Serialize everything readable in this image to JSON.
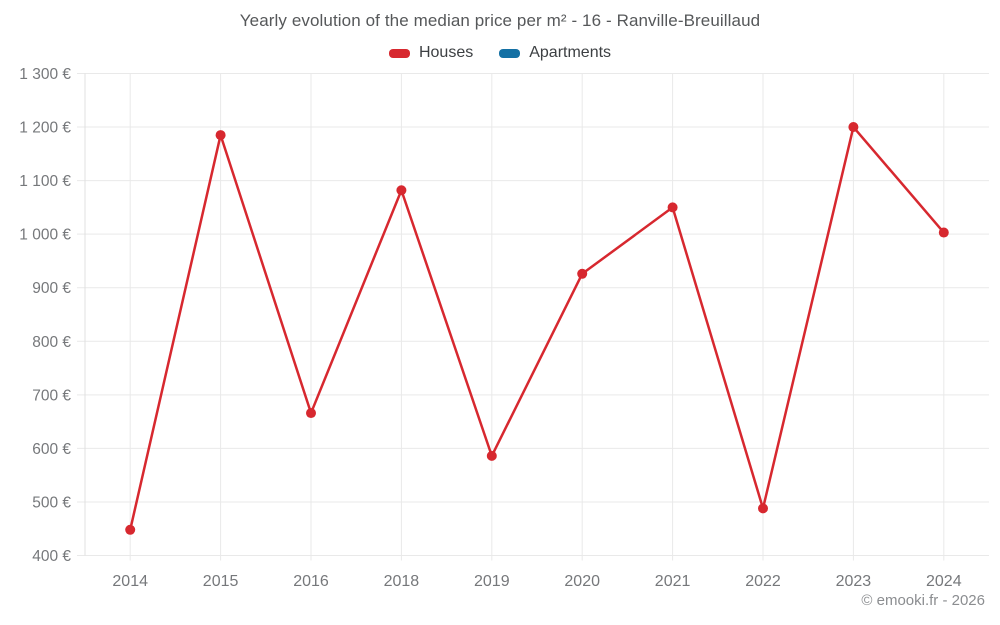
{
  "title": "Yearly evolution of the median price per m² - 16 - Ranville-Breuillaud",
  "legend": {
    "houses_label": "Houses",
    "apartments_label": "Apartments"
  },
  "footer": "© emooki.fr - 2026",
  "colors": {
    "houses": "#d7282f",
    "apartments": "#1470a4",
    "grid": "#e9e9e9",
    "axis_line": "#e0e0e0",
    "axis_text": "#76787b",
    "background": "#ffffff"
  },
  "chart_data": {
    "type": "line",
    "title": "Yearly evolution of the median price per m² - 16 - Ranville-Breuillaud",
    "categories": [
      "2014",
      "2015",
      "2016",
      "2018",
      "2019",
      "2020",
      "2021",
      "2022",
      "2023",
      "2024"
    ],
    "series": [
      {
        "name": "Houses",
        "color": "#d7282f",
        "values": [
          448,
          1185,
          666,
          1082,
          586,
          926,
          1050,
          488,
          1200,
          1003
        ]
      },
      {
        "name": "Apartments",
        "color": "#1470a4",
        "values": []
      }
    ],
    "xlabel": "",
    "ylabel": "€",
    "ylim": [
      400,
      1300
    ],
    "ytick_step": 100,
    "ytick_suffix": " €",
    "grid": true,
    "legend_position": "top",
    "note": "Year 2017 absent from axis"
  }
}
